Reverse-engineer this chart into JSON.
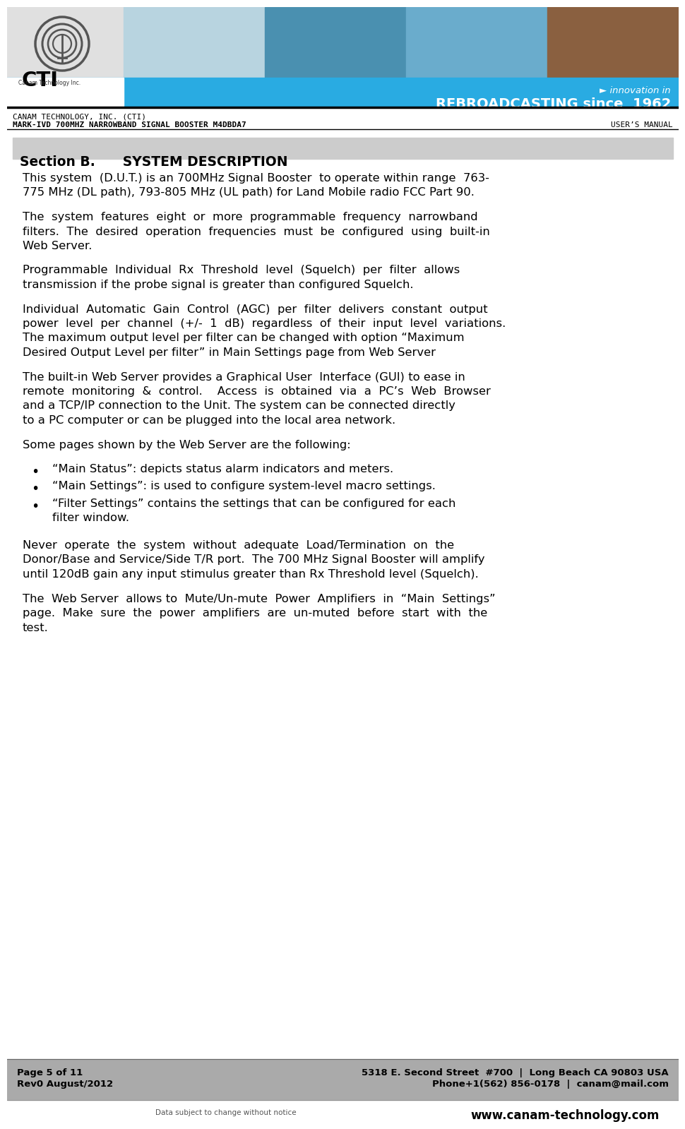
{
  "header_bg_color": "#29abe2",
  "header_text_right1": "► innovation in",
  "header_text_right2": "REBROADCASTING since  1962",
  "company_line1": "CANAM TECHNOLOGY, INC. (CTI)",
  "company_line2": "MARK-IVD 700MHZ NARROWBAND SIGNAL BOOSTER M4DBDA7",
  "company_line3": "USER’S MANUAL",
  "section_title": "Section B.      SYSTEM DESCRIPTION",
  "section_bg": "#cccccc",
  "body_paragraphs": [
    "This system  (D.U.T.) is an 700MHz Signal Booster  to operate within range  763-\n775 MHz (DL path), 793-805 MHz (UL path) for Land Mobile radio FCC Part 90.",
    "The  system  features  eight  or  more  programmable  frequency  narrowband\nfilters.  The  desired  operation  frequencies  must  be  configured  using  built-in\nWeb Server.",
    "Programmable  Individual  Rx  Threshold  level  (Squelch)  per  filter  allows\ntransmission if the probe signal is greater than configured Squelch.",
    "Individual  Automatic  Gain  Control  (AGC)  per  filter  delivers  constant  output\npower  level  per  channel  (+/-  1  dB)  regardless  of  their  input  level  variations.\nThe maximum output level per filter can be changed with option “Maximum\nDesired Output Level per filter” in Main Settings page from Web Server",
    "The built-in Web Server provides a Graphical User  Interface (GUI) to ease in\nremote  monitoring  &  control.    Access  is  obtained  via  a  PC’s  Web  Browser\nand a TCP/IP connection to the Unit. The system can be connected directly\nto a PC computer or can be plugged into the local area network.",
    "Some pages shown by the Web Server are the following:"
  ],
  "bullet_items": [
    "“Main Status”: depicts status alarm indicators and meters.",
    "“Main Settings”: is used to configure system-level macro settings.",
    "“Filter Settings” contains the settings that can be configured for each\nfilter window."
  ],
  "body_paragraphs2": [
    "Never  operate  the  system  without  adequate  Load/Termination  on  the\nDonor/Base and Service/Side T/R port.  The 700 MHz Signal Booster will amplify\nuntil 120dB gain any input stimulus greater than Rx Threshold level (Squelch).",
    "The  Web Server  allows to  Mute/Un-mute  Power  Amplifiers  in  “Main  Settings”\npage.  Make  sure  the  power  amplifiers  are  un-muted  before  start  with  the\ntest."
  ],
  "footer_bg": "#aaaaaa",
  "footer_left1": "Page 5 of 11",
  "footer_left2": "Rev0 August/2012",
  "footer_right1": "5318 E. Second Street  #700  |  Long Beach CA 90803 USA",
  "footer_right2": "Phone+1(562) 856-0178  |  canam@mail.com",
  "footer_bottom_left": "Data subject to change without notice",
  "footer_bottom_right": "www.canam-technology.com"
}
